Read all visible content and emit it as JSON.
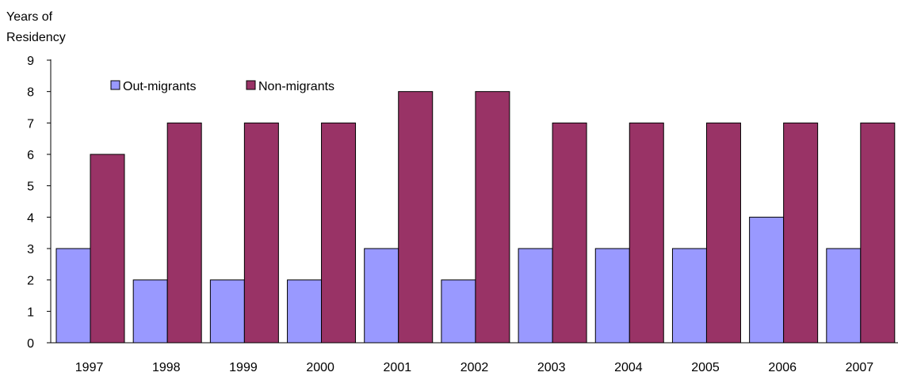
{
  "chart_data": {
    "type": "bar",
    "title": "",
    "xlabel": "",
    "ylabel": "Years of Residency",
    "ylabel_lines": [
      "Years of",
      "Residency"
    ],
    "ylim": [
      0,
      9
    ],
    "yticks": [
      0,
      1,
      2,
      3,
      4,
      5,
      6,
      7,
      8,
      9
    ],
    "categories": [
      "1997",
      "1998",
      "1999",
      "2000",
      "2001",
      "2002",
      "2003",
      "2004",
      "2005",
      "2006",
      "2007"
    ],
    "series": [
      {
        "name": "Out-migrants",
        "color": "#9999ff",
        "values": [
          3,
          2,
          2,
          2,
          3,
          2,
          3,
          3,
          3,
          4,
          3
        ]
      },
      {
        "name": "Non-migrants",
        "color": "#993366",
        "values": [
          6,
          7,
          7,
          7,
          8,
          8,
          7,
          7,
          7,
          7,
          7
        ]
      }
    ],
    "grid": false,
    "legend": "top-left"
  }
}
